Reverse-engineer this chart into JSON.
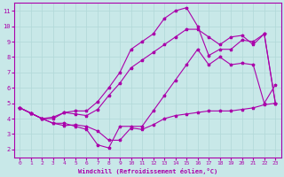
{
  "background_color": "#c8e8e8",
  "grid_color": "#b0d8d8",
  "line_color": "#aa00aa",
  "marker_color": "#aa00aa",
  "xlabel": "Windchill (Refroidissement éolien,°C)",
  "xlim": [
    -0.5,
    23.5
  ],
  "ylim": [
    1.5,
    11.5
  ],
  "xticks": [
    0,
    1,
    2,
    3,
    4,
    5,
    6,
    7,
    8,
    9,
    10,
    11,
    12,
    13,
    14,
    15,
    16,
    17,
    18,
    19,
    20,
    21,
    22,
    23
  ],
  "yticks": [
    2,
    3,
    4,
    5,
    6,
    7,
    8,
    9,
    10,
    11
  ],
  "series": [
    [
      4.7,
      4.35,
      4.0,
      3.7,
      3.55,
      3.6,
      3.5,
      3.2,
      2.6,
      2.6,
      3.4,
      3.3,
      3.6,
      4.0,
      4.2,
      4.3,
      4.4,
      4.5,
      4.5,
      4.5,
      4.6,
      4.7,
      4.9,
      5.0
    ],
    [
      4.7,
      4.35,
      4.0,
      3.7,
      3.7,
      3.5,
      3.3,
      2.3,
      2.1,
      3.5,
      3.5,
      3.5,
      4.5,
      5.5,
      6.5,
      7.5,
      8.5,
      7.5,
      8.0,
      7.5,
      7.6,
      7.5,
      5.0,
      6.2
    ],
    [
      4.7,
      4.35,
      4.0,
      4.1,
      4.4,
      4.3,
      4.2,
      4.6,
      5.5,
      6.3,
      7.3,
      7.8,
      8.3,
      8.8,
      9.3,
      9.8,
      9.8,
      9.3,
      8.8,
      9.3,
      9.4,
      8.8,
      9.5,
      5.0
    ],
    [
      4.7,
      4.35,
      4.0,
      4.0,
      4.4,
      4.5,
      4.5,
      5.1,
      6.0,
      7.0,
      8.5,
      9.0,
      9.5,
      10.5,
      11.0,
      11.2,
      10.0,
      8.1,
      8.5,
      8.5,
      9.1,
      9.0,
      9.5,
      5.0
    ]
  ]
}
